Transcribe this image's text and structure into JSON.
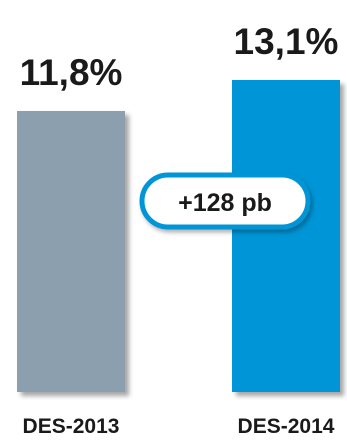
{
  "chart_data": {
    "type": "bar",
    "categories": [
      "DES-2013",
      "DES-2014"
    ],
    "values": [
      11.8,
      13.1
    ],
    "value_labels": [
      "11,8%",
      "13,1%"
    ],
    "colors": [
      "#8C9FAF",
      "#0095D6"
    ],
    "annotation": "+128 pb",
    "annotation_border_color": "#0095D6",
    "title": "",
    "xlabel": "",
    "ylabel": "",
    "ylim": [
      0,
      13.1
    ],
    "grid": false
  }
}
